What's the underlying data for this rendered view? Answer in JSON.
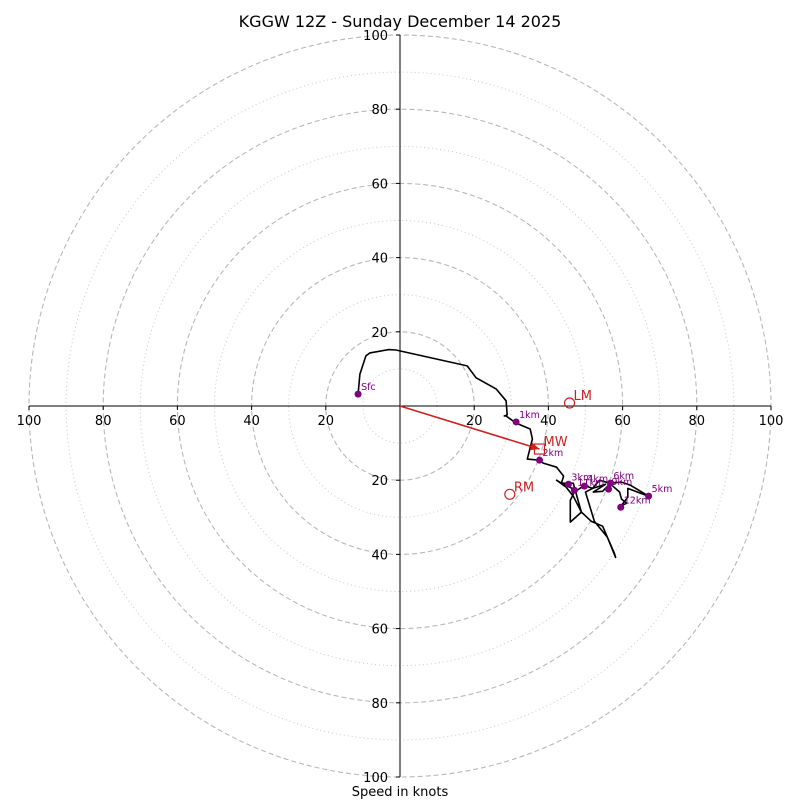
{
  "chart_data": {
    "type": "hodograph",
    "title": "KGGW 12Z - Sunday December 14 2025",
    "xlabel": "Speed in knots",
    "range": [
      -100,
      100
    ],
    "ring_major": [
      20,
      40,
      60,
      80,
      100
    ],
    "ring_minor": [
      10,
      30,
      50,
      70,
      90
    ],
    "x_tick_labels": [
      "100",
      "80",
      "60",
      "40",
      "20",
      "20",
      "40",
      "60",
      "80",
      "100"
    ],
    "x_tick_values": [
      -100,
      -80,
      -60,
      -40,
      -20,
      20,
      40,
      60,
      80,
      100
    ],
    "y_tick_labels": [
      "100",
      "80",
      "60",
      "40",
      "20",
      "20",
      "40",
      "60",
      "80",
      "100"
    ],
    "y_tick_values": [
      100,
      80,
      60,
      40,
      20,
      -20,
      -40,
      -60,
      -80,
      -100
    ],
    "trace_color": "#000000",
    "point_color": "#800080",
    "motion_color": "#cc2222",
    "trace": [
      [
        -11.3,
        3.2
      ],
      [
        -10.8,
        8.6
      ],
      [
        -9.2,
        13.5
      ],
      [
        -8.1,
        14.3
      ],
      [
        -3.0,
        15.2
      ],
      [
        -1.1,
        15.1
      ],
      [
        18.1,
        10.8
      ],
      [
        20.5,
        7.6
      ],
      [
        25.9,
        4.6
      ],
      [
        28.6,
        1.4
      ],
      [
        28.9,
        -2.4
      ],
      [
        28.1,
        -2.7
      ],
      [
        28.6,
        -2.7
      ],
      [
        31.3,
        -4.6
      ],
      [
        35.1,
        -6.2
      ],
      [
        35.7,
        -8.9
      ],
      [
        34.3,
        -14.3
      ],
      [
        37.6,
        -14.6
      ],
      [
        38.6,
        -15.4
      ],
      [
        42.2,
        -16.5
      ],
      [
        44.1,
        -18.9
      ],
      [
        43.5,
        -20.8
      ],
      [
        46.4,
        -22.2
      ],
      [
        46.7,
        -23.8
      ],
      [
        45.9,
        -25.4
      ],
      [
        45.9,
        -31.3
      ],
      [
        48.9,
        -28.6
      ],
      [
        47.3,
        -23.0
      ],
      [
        49.7,
        -21.4
      ],
      [
        51.9,
        -22.2
      ],
      [
        53.8,
        -20.0
      ],
      [
        56.5,
        -20.8
      ],
      [
        59.2,
        -23.2
      ],
      [
        59.7,
        -25.1
      ],
      [
        61.1,
        -26.2
      ],
      [
        59.5,
        -27.0
      ],
      [
        61.4,
        -24.6
      ],
      [
        61.4,
        -22.2
      ],
      [
        67.0,
        -24.3
      ],
      [
        62.2,
        -21.4
      ],
      [
        59.7,
        -20.5
      ],
      [
        56.7,
        -20.8
      ],
      [
        54.6,
        -23.0
      ],
      [
        52.1,
        -23.2
      ],
      [
        55.4,
        -21.1
      ],
      [
        51.9,
        -22.2
      ],
      [
        50.0,
        -23.2
      ],
      [
        52.4,
        -31.1
      ],
      [
        55.9,
        -35.4
      ],
      [
        58.1,
        -40.8
      ],
      [
        57.8,
        -39.7
      ],
      [
        54.6,
        -32.4
      ],
      [
        51.6,
        -31.1
      ],
      [
        48.9,
        -28.6
      ],
      [
        46.7,
        -24.3
      ],
      [
        44.8,
        -21.9
      ],
      [
        42.2,
        -20.0
      ],
      [
        43.5,
        -20.8
      ],
      [
        46.7,
        -20.8
      ],
      [
        47.3,
        -23.0
      ]
    ],
    "height_points": [
      {
        "label": "Sfc",
        "x": -11.3,
        "y": 3.2
      },
      {
        "label": "1km",
        "x": 31.3,
        "y": -4.3
      },
      {
        "label": "2km",
        "x": 37.6,
        "y": -14.6
      },
      {
        "label": "3km",
        "x": 45.4,
        "y": -21.1
      },
      {
        "label": "4km",
        "x": 49.7,
        "y": -21.6
      },
      {
        "label": "5km",
        "x": 67.0,
        "y": -24.3
      },
      {
        "label": "6km",
        "x": 56.7,
        "y": -20.8
      },
      {
        "label": "9km",
        "x": 56.2,
        "y": -22.4
      },
      {
        "label": "11km",
        "x": 47.0,
        "y": -22.7
      },
      {
        "label": "12km",
        "x": 59.5,
        "y": -27.3
      }
    ],
    "storm_motion": [
      {
        "label": "LM",
        "x": 45.7,
        "y": 0.8,
        "marker": "circle"
      },
      {
        "label": "MW",
        "x": 37.6,
        "y": -11.6,
        "marker": "square"
      },
      {
        "label": "RM",
        "x": 29.6,
        "y": -23.8,
        "marker": "circle"
      }
    ],
    "mean_wind_vector": {
      "from": [
        0,
        0
      ],
      "to": [
        37.6,
        -11.6
      ]
    }
  }
}
